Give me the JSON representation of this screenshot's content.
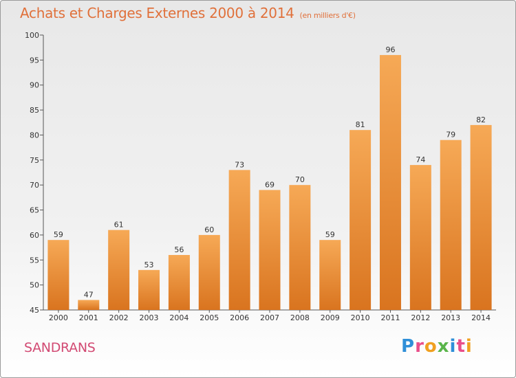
{
  "title": "Achats et Charges Externes 2000 à 2014",
  "subtitle": "(en milliers d'€)",
  "town": "SANDRANS",
  "logo": {
    "letters": [
      "P",
      "r",
      "o",
      "x",
      "i",
      "t",
      "i"
    ],
    "colors": [
      "#2f8fd8",
      "#e94e8a",
      "#f0a020",
      "#5ab54b",
      "#2f8fd8",
      "#e94e8a",
      "#f0a020"
    ]
  },
  "colors": {
    "bar_light": "#f6a956",
    "bar_dark": "#d9741f",
    "title": "#e0703a",
    "town": "#d24a73"
  },
  "chart_data": {
    "type": "bar",
    "categories": [
      "2000",
      "2001",
      "2002",
      "2003",
      "2004",
      "2005",
      "2006",
      "2007",
      "2008",
      "2009",
      "2010",
      "2011",
      "2012",
      "2013",
      "2014"
    ],
    "values": [
      59,
      47,
      61,
      53,
      56,
      60,
      73,
      69,
      70,
      59,
      81,
      96,
      74,
      79,
      82
    ],
    "title": "Achats et Charges Externes 2000 à 2014",
    "subtitle": "(en milliers d'€)",
    "xlabel": "",
    "ylabel": "",
    "ylim": [
      45,
      100
    ],
    "yticks": [
      45,
      50,
      55,
      60,
      65,
      70,
      75,
      80,
      85,
      90,
      95,
      100
    ],
    "grid": false,
    "legend": "none"
  }
}
